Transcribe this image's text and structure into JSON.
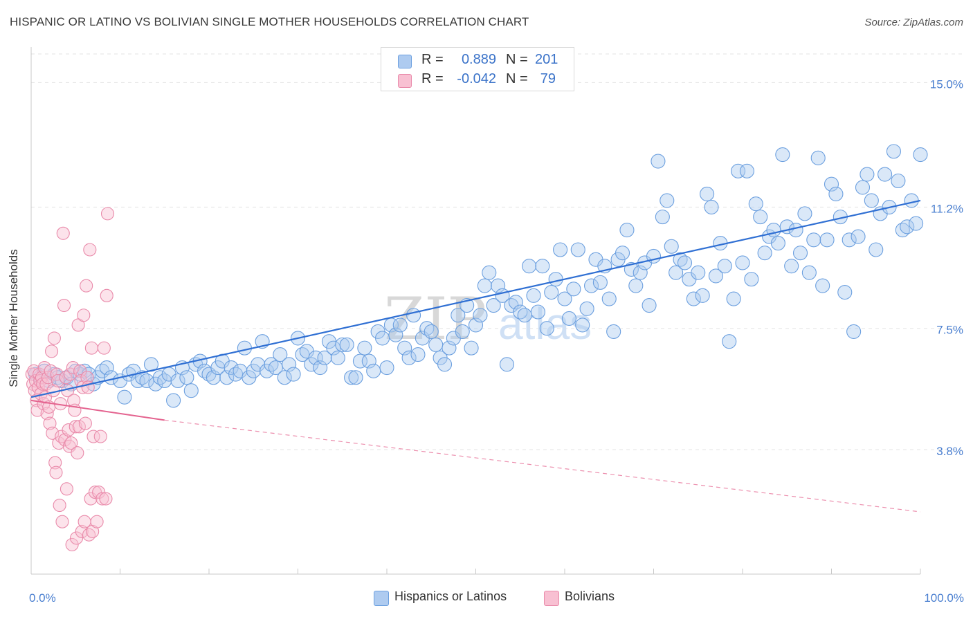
{
  "title": "HISPANIC OR LATINO VS BOLIVIAN SINGLE MOTHER HOUSEHOLDS CORRELATION CHART",
  "source": "Source: ZipAtlas.com",
  "watermark": {
    "zip": "ZIP",
    "atlas": "atlas"
  },
  "stats": [
    {
      "r_label": "R =",
      "r_value": "0.889",
      "n_label": "N =",
      "n_value": "201",
      "color": "#aecbf0",
      "border": "#6b9fdf"
    },
    {
      "r_label": "R =",
      "r_value": "-0.042",
      "n_label": "N =",
      "n_value": "79",
      "color": "#f8c0d2",
      "border": "#e98aaa"
    }
  ],
  "legend": [
    {
      "label": "Hispanics or Latinos",
      "color": "#aecbf0",
      "border": "#6b9fdf"
    },
    {
      "label": "Bolivians",
      "color": "#f8c0d2",
      "border": "#e98aaa"
    }
  ],
  "chart_data": {
    "type": "scatter",
    "title": "HISPANIC OR LATINO VS BOLIVIAN SINGLE MOTHER HOUSEHOLDS CORRELATION CHART",
    "xlabel": "",
    "ylabel": "Single Mother Households",
    "xlim": [
      0,
      100
    ],
    "ylim": [
      0,
      16
    ],
    "x_tick_labels": [
      "0.0%",
      "100.0%"
    ],
    "y_ticks": [
      3.8,
      7.5,
      11.2,
      15.0
    ],
    "y_tick_labels": [
      "3.8%",
      "7.5%",
      "11.2%",
      "15.0%"
    ],
    "grid": "horizontal dashed",
    "series": [
      {
        "name": "Hispanics or Latinos",
        "color": "#6b9fdf",
        "fill": "#aecbf0",
        "trend": {
          "x": [
            0,
            100
          ],
          "y": [
            5.4,
            11.4
          ],
          "style": "solid"
        },
        "points": [
          [
            0.5,
            6.1
          ],
          [
            1.0,
            6.0
          ],
          [
            1.5,
            6.2
          ],
          [
            2.0,
            5.9
          ],
          [
            2.6,
            6.1
          ],
          [
            3.0,
            6.0
          ],
          [
            3.5,
            5.9
          ],
          [
            4.0,
            6.0
          ],
          [
            4.5,
            5.8
          ],
          [
            5.0,
            6.2
          ],
          [
            5.5,
            6.1
          ],
          [
            6.0,
            6.2
          ],
          [
            6.5,
            6.1
          ],
          [
            7.0,
            5.8
          ],
          [
            7.5,
            6.0
          ],
          [
            8.0,
            6.2
          ],
          [
            8.5,
            6.3
          ],
          [
            9.0,
            6.0
          ],
          [
            10.0,
            5.9
          ],
          [
            10.5,
            5.4
          ],
          [
            11.0,
            6.1
          ],
          [
            11.5,
            6.2
          ],
          [
            12.0,
            5.9
          ],
          [
            12.5,
            6.0
          ],
          [
            13.0,
            5.9
          ],
          [
            13.5,
            6.4
          ],
          [
            14.0,
            5.8
          ],
          [
            14.5,
            6.0
          ],
          [
            15.0,
            5.9
          ],
          [
            15.5,
            6.1
          ],
          [
            16.0,
            5.3
          ],
          [
            16.5,
            5.9
          ],
          [
            17.0,
            6.3
          ],
          [
            17.5,
            6.0
          ],
          [
            18.0,
            5.6
          ],
          [
            18.5,
            6.4
          ],
          [
            19.0,
            6.5
          ],
          [
            19.5,
            6.2
          ],
          [
            20.0,
            6.1
          ],
          [
            20.5,
            6.0
          ],
          [
            21.0,
            6.3
          ],
          [
            21.5,
            6.5
          ],
          [
            22.0,
            6.0
          ],
          [
            22.5,
            6.3
          ],
          [
            23.0,
            6.1
          ],
          [
            23.5,
            6.2
          ],
          [
            24.0,
            6.9
          ],
          [
            24.5,
            6.0
          ],
          [
            25.0,
            6.2
          ],
          [
            25.5,
            6.4
          ],
          [
            26.0,
            7.1
          ],
          [
            26.5,
            6.2
          ],
          [
            27.0,
            6.4
          ],
          [
            27.5,
            6.3
          ],
          [
            28.0,
            6.7
          ],
          [
            28.5,
            6.0
          ],
          [
            29.0,
            6.4
          ],
          [
            29.5,
            6.1
          ],
          [
            30.0,
            7.2
          ],
          [
            30.5,
            6.7
          ],
          [
            31.0,
            6.8
          ],
          [
            31.5,
            6.4
          ],
          [
            32.0,
            6.6
          ],
          [
            32.5,
            6.3
          ],
          [
            33.0,
            6.6
          ],
          [
            33.5,
            7.1
          ],
          [
            34.0,
            6.9
          ],
          [
            34.5,
            6.6
          ],
          [
            35.0,
            7.0
          ],
          [
            35.5,
            7.0
          ],
          [
            36.0,
            6.0
          ],
          [
            36.5,
            6.0
          ],
          [
            37.0,
            6.5
          ],
          [
            37.5,
            6.9
          ],
          [
            38.0,
            6.5
          ],
          [
            38.5,
            6.2
          ],
          [
            39.0,
            7.4
          ],
          [
            39.5,
            7.2
          ],
          [
            40.0,
            6.3
          ],
          [
            40.5,
            7.6
          ],
          [
            41.0,
            7.3
          ],
          [
            41.5,
            7.6
          ],
          [
            42.0,
            6.9
          ],
          [
            42.5,
            6.6
          ],
          [
            43.0,
            7.9
          ],
          [
            43.5,
            6.7
          ],
          [
            44.0,
            7.2
          ],
          [
            44.5,
            7.5
          ],
          [
            45.0,
            7.4
          ],
          [
            45.5,
            7.0
          ],
          [
            46.0,
            6.6
          ],
          [
            46.5,
            6.4
          ],
          [
            47.0,
            6.9
          ],
          [
            47.5,
            7.2
          ],
          [
            48.0,
            7.9
          ],
          [
            48.5,
            7.4
          ],
          [
            49.0,
            8.2
          ],
          [
            49.5,
            6.9
          ],
          [
            50.0,
            7.6
          ],
          [
            50.5,
            7.9
          ],
          [
            51.0,
            8.8
          ],
          [
            51.5,
            9.2
          ],
          [
            52.0,
            8.2
          ],
          [
            52.5,
            8.8
          ],
          [
            53.0,
            8.5
          ],
          [
            53.5,
            6.4
          ],
          [
            54.0,
            8.2
          ],
          [
            54.5,
            8.3
          ],
          [
            55.0,
            8.0
          ],
          [
            55.5,
            7.9
          ],
          [
            56.0,
            9.4
          ],
          [
            56.5,
            8.5
          ],
          [
            57.0,
            8.0
          ],
          [
            57.5,
            9.4
          ],
          [
            58.0,
            7.5
          ],
          [
            58.5,
            8.6
          ],
          [
            59.0,
            9.0
          ],
          [
            59.5,
            9.9
          ],
          [
            60.0,
            8.4
          ],
          [
            60.5,
            7.8
          ],
          [
            61.0,
            8.7
          ],
          [
            61.5,
            9.9
          ],
          [
            62.0,
            7.6
          ],
          [
            62.5,
            8.1
          ],
          [
            63.0,
            8.8
          ],
          [
            63.5,
            9.6
          ],
          [
            64.0,
            8.9
          ],
          [
            64.5,
            9.4
          ],
          [
            65.0,
            8.4
          ],
          [
            65.5,
            7.4
          ],
          [
            66.0,
            9.6
          ],
          [
            66.5,
            9.8
          ],
          [
            67.0,
            10.5
          ],
          [
            67.5,
            9.3
          ],
          [
            68.0,
            8.8
          ],
          [
            68.5,
            9.2
          ],
          [
            69.0,
            9.5
          ],
          [
            69.5,
            8.2
          ],
          [
            70.0,
            9.7
          ],
          [
            70.5,
            12.6
          ],
          [
            71.0,
            10.9
          ],
          [
            71.5,
            11.4
          ],
          [
            72.0,
            10.0
          ],
          [
            72.5,
            9.2
          ],
          [
            73.0,
            9.6
          ],
          [
            73.5,
            9.5
          ],
          [
            74.0,
            9.0
          ],
          [
            74.5,
            8.4
          ],
          [
            75.0,
            9.2
          ],
          [
            75.5,
            8.5
          ],
          [
            76.0,
            11.6
          ],
          [
            76.5,
            11.2
          ],
          [
            77.0,
            9.1
          ],
          [
            77.5,
            10.1
          ],
          [
            78.0,
            9.4
          ],
          [
            78.5,
            7.1
          ],
          [
            79.0,
            8.4
          ],
          [
            79.5,
            12.3
          ],
          [
            80.0,
            9.5
          ],
          [
            80.5,
            12.3
          ],
          [
            81.0,
            9.0
          ],
          [
            81.5,
            11.3
          ],
          [
            82.0,
            10.9
          ],
          [
            82.5,
            9.8
          ],
          [
            83.0,
            10.3
          ],
          [
            83.5,
            10.5
          ],
          [
            84.0,
            10.1
          ],
          [
            84.5,
            12.8
          ],
          [
            85.0,
            10.6
          ],
          [
            85.5,
            9.4
          ],
          [
            86.0,
            10.5
          ],
          [
            86.5,
            9.8
          ],
          [
            87.0,
            11.0
          ],
          [
            87.5,
            9.2
          ],
          [
            88.0,
            10.2
          ],
          [
            88.5,
            12.7
          ],
          [
            89.0,
            8.8
          ],
          [
            89.5,
            10.2
          ],
          [
            90.0,
            11.9
          ],
          [
            90.5,
            11.6
          ],
          [
            91.0,
            10.9
          ],
          [
            91.5,
            8.6
          ],
          [
            92.0,
            10.2
          ],
          [
            92.5,
            7.4
          ],
          [
            93.0,
            10.3
          ],
          [
            93.5,
            11.8
          ],
          [
            94.0,
            12.2
          ],
          [
            94.5,
            11.4
          ],
          [
            95.0,
            9.9
          ],
          [
            95.5,
            11.0
          ],
          [
            96.0,
            12.2
          ],
          [
            96.5,
            11.2
          ],
          [
            97.0,
            12.9
          ],
          [
            97.5,
            12.0
          ],
          [
            98.0,
            10.5
          ],
          [
            98.5,
            10.6
          ],
          [
            99.0,
            11.4
          ],
          [
            99.5,
            10.7
          ],
          [
            100.0,
            12.8
          ]
        ]
      },
      {
        "name": "Bolivians",
        "color": "#e98aaa",
        "fill": "#f8c0d2",
        "trend": {
          "x": [
            0,
            15
          ],
          "y": [
            5.3,
            4.7
          ],
          "x_dashed_end": 100,
          "y_dashed_end": 1.9,
          "style": "solid-then-dashed"
        },
        "points": [
          [
            0.1,
            6.1
          ],
          [
            0.2,
            5.8
          ],
          [
            0.3,
            6.2
          ],
          [
            0.4,
            5.6
          ],
          [
            0.5,
            5.9
          ],
          [
            0.6,
            5.3
          ],
          [
            0.7,
            5.0
          ],
          [
            0.8,
            5.7
          ],
          [
            0.9,
            6.1
          ],
          [
            1.0,
            5.9
          ],
          [
            1.1,
            5.5
          ],
          [
            1.2,
            6.0
          ],
          [
            1.3,
            5.8
          ],
          [
            1.4,
            5.2
          ],
          [
            1.5,
            6.3
          ],
          [
            1.6,
            5.4
          ],
          [
            1.7,
            5.8
          ],
          [
            1.8,
            4.9
          ],
          [
            1.9,
            6.0
          ],
          [
            2.0,
            5.1
          ],
          [
            2.1,
            4.6
          ],
          [
            2.2,
            6.2
          ],
          [
            2.3,
            6.8
          ],
          [
            2.4,
            4.3
          ],
          [
            2.5,
            5.6
          ],
          [
            2.6,
            7.2
          ],
          [
            2.7,
            3.4
          ],
          [
            2.8,
            3.1
          ],
          [
            2.9,
            6.1
          ],
          [
            3.0,
            5.9
          ],
          [
            3.1,
            4.0
          ],
          [
            3.2,
            2.1
          ],
          [
            3.3,
            5.2
          ],
          [
            3.4,
            4.2
          ],
          [
            3.5,
            1.6
          ],
          [
            3.6,
            10.4
          ],
          [
            3.7,
            8.2
          ],
          [
            3.8,
            4.1
          ],
          [
            3.9,
            6.0
          ],
          [
            4.0,
            2.6
          ],
          [
            4.1,
            5.6
          ],
          [
            4.2,
            4.4
          ],
          [
            4.3,
            3.9
          ],
          [
            4.4,
            6.1
          ],
          [
            4.5,
            4.0
          ],
          [
            4.6,
            0.9
          ],
          [
            4.7,
            6.3
          ],
          [
            4.8,
            5.3
          ],
          [
            4.9,
            5.0
          ],
          [
            5.0,
            4.5
          ],
          [
            5.1,
            1.1
          ],
          [
            5.2,
            3.7
          ],
          [
            5.3,
            7.6
          ],
          [
            5.4,
            4.5
          ],
          [
            5.5,
            6.2
          ],
          [
            5.6,
            5.9
          ],
          [
            5.7,
            1.3
          ],
          [
            5.8,
            5.7
          ],
          [
            5.9,
            7.9
          ],
          [
            6.0,
            1.6
          ],
          [
            6.1,
            4.6
          ],
          [
            6.2,
            8.8
          ],
          [
            6.3,
            6.0
          ],
          [
            6.4,
            5.7
          ],
          [
            6.5,
            1.2
          ],
          [
            6.6,
            9.9
          ],
          [
            6.7,
            2.3
          ],
          [
            6.8,
            6.9
          ],
          [
            6.9,
            1.3
          ],
          [
            7.0,
            4.2
          ],
          [
            7.2,
            2.5
          ],
          [
            7.4,
            1.6
          ],
          [
            7.6,
            2.5
          ],
          [
            7.8,
            4.2
          ],
          [
            8.0,
            2.3
          ],
          [
            8.2,
            6.9
          ],
          [
            8.4,
            2.3
          ],
          [
            8.5,
            8.5
          ],
          [
            8.6,
            11.0
          ]
        ]
      }
    ]
  }
}
